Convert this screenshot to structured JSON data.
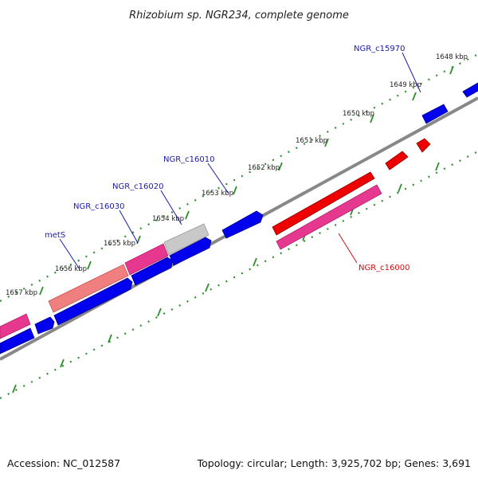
{
  "title": "Rhizobium sp. NGR234, complete genome",
  "colors": {
    "background": "#ffffff",
    "backbone": "#888888",
    "tick": "#2f8f2f",
    "forward_gene": "#0000ee",
    "reverse_gene": "#ee0000",
    "pseudo_gene": "#e6388f",
    "rna_gene": "#f08080",
    "other_feature": "#c8c8c8",
    "label_forward": "#1a1aaa",
    "label_reverse": "#cc1111"
  },
  "ticks": [
    {
      "label": "1648 kbp"
    },
    {
      "label": "1649 kbp"
    },
    {
      "label": "1650 kbp"
    },
    {
      "label": "1651 kbp"
    },
    {
      "label": "1652 kbp"
    },
    {
      "label": "1653 kbp"
    },
    {
      "label": "1654 kbp"
    },
    {
      "label": "1655 kbp"
    },
    {
      "label": "1656 kbp"
    },
    {
      "label": "1657 kbp"
    }
  ],
  "gene_labels": [
    {
      "text": "NGR_c15970",
      "strand": "forward"
    },
    {
      "text": "NGR_c16010",
      "strand": "forward"
    },
    {
      "text": "NGR_c16020",
      "strand": "forward"
    },
    {
      "text": "NGR_c16030",
      "strand": "forward"
    },
    {
      "text": "metS",
      "strand": "forward"
    },
    {
      "text": "NGR_c16000",
      "strand": "reverse"
    }
  ],
  "footer": {
    "accession": "Accession: NC_012587",
    "stats": "Topology: circular; Length: 3,925,702 bp; Genes: 3,691"
  }
}
